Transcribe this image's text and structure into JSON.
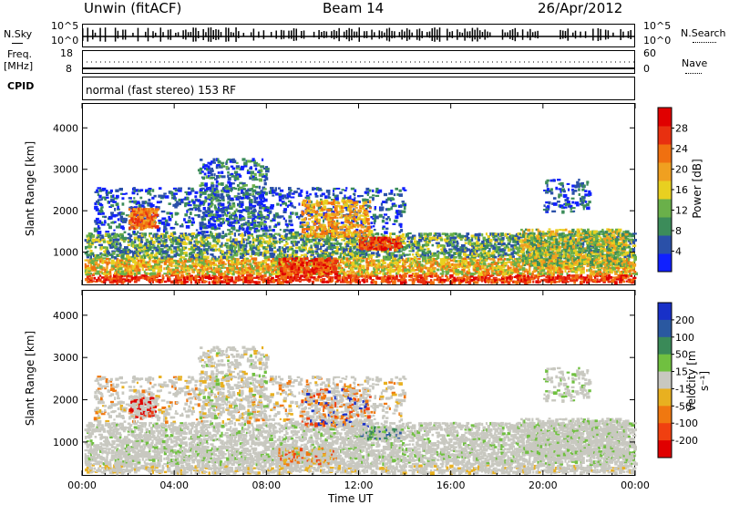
{
  "header": {
    "station": "Unwin (fitACF)",
    "beam": "Beam 14",
    "date": "26/Apr/2012"
  },
  "top_panels": {
    "nsky_label": "N.Sky",
    "nsky_ticks": [
      "10^5",
      "10^0"
    ],
    "nsearch_label": "N.Search",
    "nsearch_ticks": [
      "10^5",
      "10^0"
    ],
    "freq_label": "Freq.",
    "freq_unit": "[MHz]",
    "freq_ticks": [
      "18",
      "8"
    ],
    "nave_label": "Nave",
    "nave_ticks": [
      "60",
      "0"
    ],
    "cpid_label": "CPID",
    "cpid_text": "normal (fast stereo) 153 RF"
  },
  "colors": {
    "power_scale": [
      "#1020ff",
      "#2a50a8",
      "#3c8c5a",
      "#6ab04a",
      "#e8d020",
      "#f0a020",
      "#f07010",
      "#e83010",
      "#e00000"
    ],
    "velocity_scale": [
      "#1830c8",
      "#2a58a0",
      "#3a8a58",
      "#70c040",
      "#c8c8c0",
      "#e8b020",
      "#f07810",
      "#f04010",
      "#e00000"
    ],
    "grey": "#c8c8c0"
  },
  "chart_data": [
    {
      "type": "heatmap",
      "name": "power",
      "xlabel": "",
      "ylabel": "Slant Range [km]",
      "yticks": [
        1000,
        2000,
        3000,
        4000
      ],
      "ylim": [
        200,
        4600
      ],
      "xlim_hours": [
        0,
        24
      ],
      "colorbar": {
        "label": "Power [dB]",
        "ticks": [
          "4",
          "8",
          "12",
          "16",
          "20",
          "24",
          "28"
        ]
      }
    },
    {
      "type": "heatmap",
      "name": "velocity",
      "xlabel": "Time UT",
      "ylabel": "Slant Range [km]",
      "yticks": [
        1000,
        2000,
        3000,
        4000
      ],
      "ylim": [
        200,
        4600
      ],
      "xlim_hours": [
        0,
        24
      ],
      "xticks": [
        "00:00",
        "04:00",
        "08:00",
        "12:00",
        "16:00",
        "20:00",
        "00:00"
      ],
      "colorbar": {
        "label": "Velocity [m s⁻¹]",
        "ticks": [
          "200",
          "100",
          "50",
          "15",
          "-15",
          "-50",
          "-100",
          "-200"
        ]
      }
    }
  ]
}
